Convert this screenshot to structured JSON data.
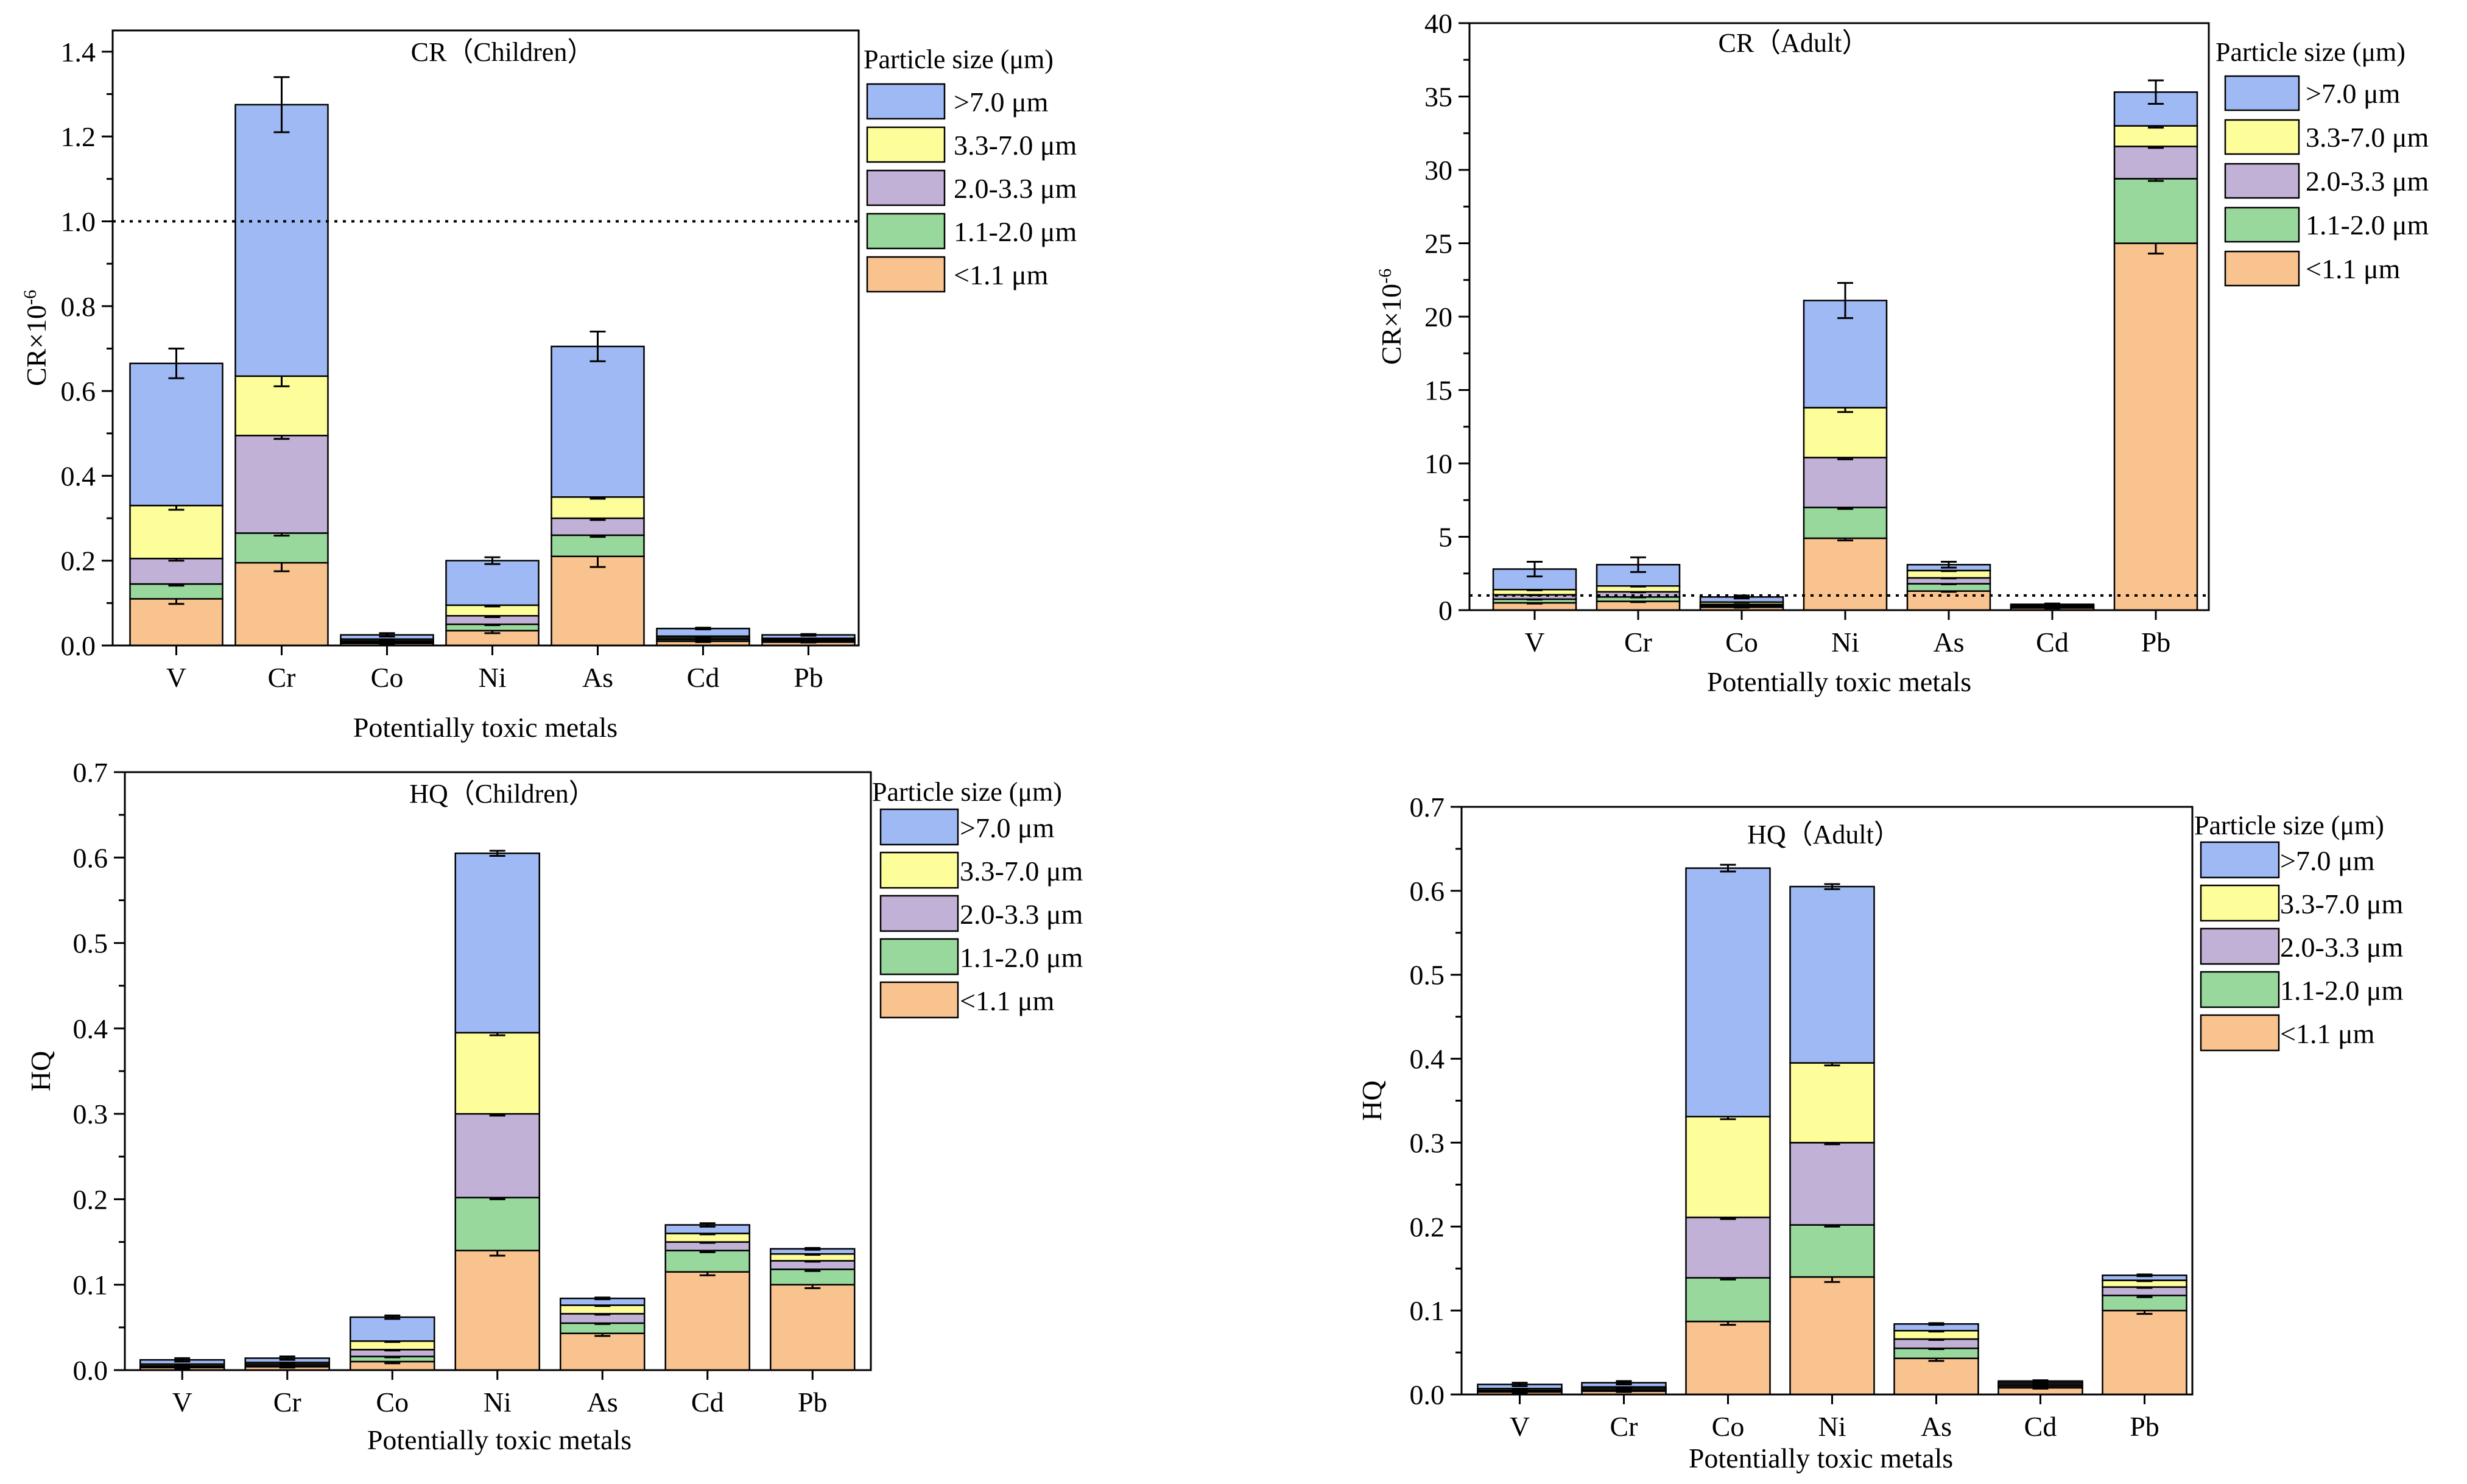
{
  "colors": {
    "lt1_1": "#f9c38f",
    "s1_1_2_0": "#98d89c",
    "s2_0_3_3": "#c2b1d6",
    "s3_3_7_0": "#fdfd9a",
    "gt7_0": "#9fb9f4"
  },
  "chart_data": [
    {
      "id": "cr-children",
      "type": "bar",
      "stacked": true,
      "title": "CR（Children）",
      "xlabel": "Potentially toxic metals",
      "ylabel": "CR×10",
      "ylabel_sup": "-6",
      "ylim": [
        0,
        1.45
      ],
      "yticks": [
        "0.0",
        "0.2",
        "0.4",
        "0.6",
        "0.8",
        "1.0",
        "1.2",
        "1.4"
      ],
      "ytick_values": [
        0,
        0.2,
        0.4,
        0.6,
        0.8,
        1.0,
        1.2,
        1.4
      ],
      "reference_line": 1.0,
      "categories": [
        "V",
        "Cr",
        "Co",
        "Ni",
        "As",
        "Cd",
        "Pb"
      ],
      "legend_title": "Particle size (μm)",
      "series": [
        {
          "name": "<1.1 μm",
          "values": [
            0.11,
            0.195,
            0.005,
            0.035,
            0.21,
            0.01,
            0.008
          ]
        },
        {
          "name": "1.1-2.0  μm",
          "values": [
            0.035,
            0.07,
            0.003,
            0.015,
            0.05,
            0.004,
            0.003
          ]
        },
        {
          "name": "2.0-3.3  μm",
          "values": [
            0.06,
            0.23,
            0.003,
            0.02,
            0.04,
            0.004,
            0.003
          ]
        },
        {
          "name": "3.3-7.0  μm",
          "values": [
            0.125,
            0.14,
            0.004,
            0.025,
            0.05,
            0.004,
            0.003
          ]
        },
        {
          "name": ">7.0 μm",
          "values": [
            0.335,
            0.64,
            0.01,
            0.105,
            0.355,
            0.018,
            0.008
          ]
        }
      ],
      "errors": [
        [
          0.012,
          0.02,
          0.002,
          0.006,
          0.025,
          0.002,
          0.001
        ],
        [
          0.004,
          0.006,
          0.001,
          0.002,
          0.004,
          0.001,
          0.001
        ],
        [
          0.005,
          0.008,
          0.001,
          0.003,
          0.004,
          0.001,
          0.001
        ],
        [
          0.01,
          0.024,
          0.002,
          0.003,
          0.004,
          0.001,
          0.001
        ],
        [
          0.035,
          0.065,
          0.004,
          0.008,
          0.035,
          0.002,
          0.002
        ]
      ]
    },
    {
      "id": "cr-adult",
      "type": "bar",
      "stacked": true,
      "title": "CR（Adult）",
      "xlabel": "Potentially toxic metals",
      "ylabel": "CR×10",
      "ylabel_sup": "-6",
      "ylim": [
        0,
        40
      ],
      "yticks": [
        "0",
        "5",
        "10",
        "15",
        "20",
        "25",
        "30",
        "35",
        "40"
      ],
      "ytick_values": [
        0,
        5,
        10,
        15,
        20,
        25,
        30,
        35,
        40
      ],
      "reference_line": 1.0,
      "categories": [
        "V",
        "Cr",
        "Co",
        "Ni",
        "As",
        "Cd",
        "Pb"
      ],
      "legend_title": "Particle size (μm)",
      "series": [
        {
          "name": "<1.1 μm",
          "values": [
            0.5,
            0.6,
            0.2,
            4.9,
            1.3,
            0.15,
            25.0
          ]
        },
        {
          "name": "1.1-2.0  μm",
          "values": [
            0.25,
            0.3,
            0.1,
            2.1,
            0.5,
            0.05,
            4.4
          ]
        },
        {
          "name": "2.0-3.3  μm",
          "values": [
            0.3,
            0.35,
            0.1,
            3.4,
            0.4,
            0.05,
            2.2
          ]
        },
        {
          "name": "3.3-7.0  μm",
          "values": [
            0.35,
            0.4,
            0.15,
            3.4,
            0.5,
            0.05,
            1.4
          ]
        },
        {
          "name": ">7.0 μm",
          "values": [
            1.4,
            1.45,
            0.35,
            7.3,
            0.4,
            0.1,
            2.3
          ]
        }
      ],
      "errors": [
        [
          0.05,
          0.05,
          0.03,
          0.15,
          0.05,
          0.02,
          0.7
        ],
        [
          0.03,
          0.03,
          0.02,
          0.1,
          0.03,
          0.01,
          0.15
        ],
        [
          0.03,
          0.03,
          0.02,
          0.12,
          0.03,
          0.01,
          0.1
        ],
        [
          0.04,
          0.04,
          0.02,
          0.3,
          0.04,
          0.01,
          0.12
        ],
        [
          0.5,
          0.5,
          0.1,
          1.2,
          0.2,
          0.05,
          0.8
        ]
      ]
    },
    {
      "id": "hq-children",
      "type": "bar",
      "stacked": true,
      "title": "HQ（Children）",
      "xlabel": "Potentially toxic metals",
      "ylabel": "HQ",
      "ylabel_sup": "",
      "ylim": [
        0,
        0.7
      ],
      "yticks": [
        "0.0",
        "0.1",
        "0.2",
        "0.3",
        "0.4",
        "0.5",
        "0.6",
        "0.7"
      ],
      "ytick_values": [
        0,
        0.1,
        0.2,
        0.3,
        0.4,
        0.5,
        0.6,
        0.7
      ],
      "reference_line": null,
      "categories": [
        "V",
        "Cr",
        "Co",
        "Ni",
        "As",
        "Cd",
        "Pb"
      ],
      "legend_title": "Particle size (μm)",
      "series": [
        {
          "name": "<1.1 μm",
          "values": [
            0.003,
            0.004,
            0.01,
            0.14,
            0.043,
            0.115,
            0.1
          ]
        },
        {
          "name": "1.1-2.0  μm",
          "values": [
            0.001,
            0.001,
            0.006,
            0.062,
            0.012,
            0.025,
            0.018
          ]
        },
        {
          "name": "2.0-3.3  μm",
          "values": [
            0.001,
            0.002,
            0.008,
            0.098,
            0.011,
            0.01,
            0.01
          ]
        },
        {
          "name": "3.3-7.0  μm",
          "values": [
            0.002,
            0.002,
            0.01,
            0.095,
            0.01,
            0.01,
            0.008
          ]
        },
        {
          "name": ">7.0 μm",
          "values": [
            0.005,
            0.005,
            0.028,
            0.21,
            0.008,
            0.01,
            0.006
          ]
        }
      ],
      "errors": [
        [
          0.001,
          0.001,
          0.002,
          0.006,
          0.003,
          0.004,
          0.004
        ],
        [
          0.001,
          0.001,
          0.001,
          0.002,
          0.001,
          0.002,
          0.002
        ],
        [
          0.001,
          0.001,
          0.001,
          0.002,
          0.001,
          0.001,
          0.001
        ],
        [
          0.001,
          0.001,
          0.001,
          0.003,
          0.001,
          0.001,
          0.001
        ],
        [
          0.002,
          0.002,
          0.002,
          0.003,
          0.001,
          0.002,
          0.001
        ]
      ]
    },
    {
      "id": "hq-adult",
      "type": "bar",
      "stacked": true,
      "title": "HQ（Adult）",
      "xlabel": "Potentially toxic metals",
      "ylabel": "HQ",
      "ylabel_sup": "",
      "ylim": [
        0,
        0.7
      ],
      "yticks": [
        "0.0",
        "0.1",
        "0.2",
        "0.3",
        "0.4",
        "0.5",
        "0.6",
        "0.7"
      ],
      "ytick_values": [
        0,
        0.1,
        0.2,
        0.3,
        0.4,
        0.5,
        0.6,
        0.7
      ],
      "reference_line": null,
      "categories": [
        "V",
        "Cr",
        "Co",
        "Ni",
        "As",
        "Cd",
        "Pb"
      ],
      "legend_title": "Particle size (μm)",
      "series": [
        {
          "name": "<1.1 μm",
          "values": [
            0.003,
            0.004,
            0.087,
            0.14,
            0.043,
            0.008,
            0.1
          ]
        },
        {
          "name": "1.1-2.0  μm",
          "values": [
            0.001,
            0.001,
            0.052,
            0.062,
            0.012,
            0.002,
            0.018
          ]
        },
        {
          "name": "2.0-3.3  μm",
          "values": [
            0.001,
            0.002,
            0.072,
            0.098,
            0.011,
            0.002,
            0.01
          ]
        },
        {
          "name": "3.3-7.0  μm",
          "values": [
            0.002,
            0.002,
            0.12,
            0.095,
            0.01,
            0.002,
            0.008
          ]
        },
        {
          "name": ">7.0 μm",
          "values": [
            0.005,
            0.005,
            0.296,
            0.21,
            0.008,
            0.002,
            0.006
          ]
        }
      ],
      "errors": [
        [
          0.001,
          0.001,
          0.004,
          0.006,
          0.003,
          0.001,
          0.004
        ],
        [
          0.001,
          0.001,
          0.002,
          0.002,
          0.001,
          0.001,
          0.002
        ],
        [
          0.001,
          0.001,
          0.002,
          0.002,
          0.001,
          0.001,
          0.001
        ],
        [
          0.001,
          0.001,
          0.003,
          0.003,
          0.001,
          0.001,
          0.001
        ],
        [
          0.002,
          0.002,
          0.004,
          0.003,
          0.001,
          0.001,
          0.001
        ]
      ]
    }
  ]
}
